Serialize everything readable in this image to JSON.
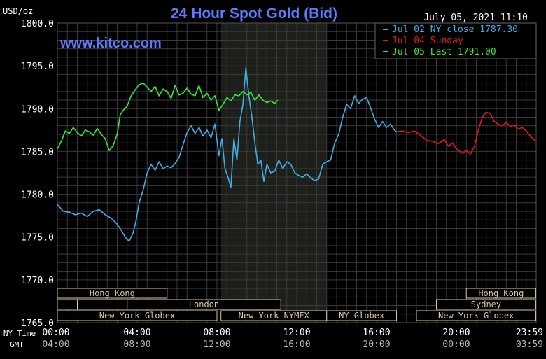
{
  "chart_data": {
    "type": "line",
    "title": "24 Hour Spot Gold (Bid)",
    "ylabel": "USD/oz",
    "brand": "www.kitco.com",
    "timestamp": "July 05, 2021 11:10",
    "ylim": [
      1765.0,
      1800.0
    ],
    "xlim_hours": [
      0,
      24
    ],
    "y_ticks": [
      "1800.0",
      "1795.0",
      "1790.0",
      "1785.0",
      "1780.0",
      "1775.0",
      "1770.0",
      "1765.0"
    ],
    "y_tick_values": [
      1800,
      1795,
      1790,
      1785,
      1780,
      1775,
      1770,
      1765
    ],
    "grid": true,
    "legend_position": "top-right",
    "time_axis": {
      "row1_label": "NY Time",
      "row2_label": "GMT",
      "ticks": [
        {
          "hour": 0,
          "ny": "00:00",
          "gmt": "04:00"
        },
        {
          "hour": 4,
          "ny": "04:00",
          "gmt": "08:00"
        },
        {
          "hour": 8,
          "ny": "08:00",
          "gmt": "12:00"
        },
        {
          "hour": 12,
          "ny": "12:00",
          "gmt": "16:00"
        },
        {
          "hour": 16,
          "ny": "16:00",
          "gmt": "20:00"
        },
        {
          "hour": 20,
          "ny": "20:00",
          "gmt": "00:00"
        },
        {
          "hour": 23.98,
          "ny": "23:59",
          "gmt": "03:59"
        }
      ]
    },
    "nymex_session_hours": [
      8.2,
      13.5
    ],
    "market_sessions": [
      {
        "label": "Hong Kong",
        "start": 0.0,
        "end": 5.5,
        "row": 1,
        "show_label": true
      },
      {
        "label": "",
        "start": 0.0,
        "end": 1.0,
        "row": 2,
        "show_label": false
      },
      {
        "label": "",
        "start": 1.0,
        "end": 3.5,
        "row": 2,
        "show_label": false
      },
      {
        "label": "London",
        "start": 3.5,
        "end": 11.2,
        "row": 2,
        "show_label": true
      },
      {
        "label": "New York Globex",
        "start": 0.0,
        "end": 8.0,
        "row": 3,
        "show_label": true
      },
      {
        "label": "New York NYMEX",
        "start": 8.2,
        "end": 13.5,
        "row": 3,
        "show_label": true
      },
      {
        "label": "NY Globex",
        "start": 13.5,
        "end": 17.0,
        "row": 3,
        "show_label": true
      },
      {
        "label": "Hong Kong",
        "start": 20.5,
        "end": 23.98,
        "row": 1,
        "show_label": true
      },
      {
        "label": "Sydney",
        "start": 19.0,
        "end": 23.98,
        "row": 2,
        "show_label": true
      },
      {
        "label": "New York Globex",
        "start": 18.0,
        "end": 23.98,
        "row": 3,
        "show_label": true
      }
    ],
    "series": [
      {
        "name": "Jul 02 NY close 1787.30",
        "color": "#3fb0e6",
        "x": [
          0.0,
          0.3,
          0.6,
          0.9,
          1.2,
          1.5,
          1.8,
          2.1,
          2.4,
          2.7,
          3.0,
          3.2,
          3.4,
          3.6,
          3.8,
          3.95,
          4.1,
          4.3,
          4.5,
          4.7,
          4.9,
          5.1,
          5.3,
          5.5,
          5.7,
          5.9,
          6.1,
          6.3,
          6.5,
          6.7,
          6.9,
          7.1,
          7.3,
          7.5,
          7.7,
          7.9,
          8.1,
          8.25,
          8.4,
          8.55,
          8.7,
          8.85,
          9.0,
          9.15,
          9.3,
          9.45,
          9.6,
          9.75,
          9.9,
          10.05,
          10.2,
          10.35,
          10.5,
          10.7,
          10.9,
          11.1,
          11.3,
          11.5,
          11.7,
          11.9,
          12.1,
          12.3,
          12.5,
          12.7,
          12.9,
          13.1,
          13.3,
          13.5,
          13.7,
          13.9,
          14.1,
          14.3,
          14.5,
          14.7,
          14.9,
          15.1,
          15.3,
          15.5,
          15.7,
          15.9,
          16.1,
          16.3,
          16.5,
          16.7,
          16.9,
          17.0
        ],
        "values": [
          1778.8,
          1778.0,
          1777.9,
          1777.6,
          1777.8,
          1777.4,
          1778.0,
          1778.2,
          1777.6,
          1777.2,
          1776.5,
          1775.8,
          1775.0,
          1774.5,
          1775.5,
          1777.0,
          1779.0,
          1780.5,
          1782.5,
          1783.5,
          1782.8,
          1783.8,
          1783.0,
          1783.3,
          1783.1,
          1783.6,
          1784.3,
          1785.8,
          1787.2,
          1788.0,
          1787.1,
          1787.8,
          1786.8,
          1787.5,
          1786.6,
          1788.2,
          1784.5,
          1786.5,
          1783.0,
          1782.0,
          1780.8,
          1786.5,
          1784.0,
          1788.5,
          1790.5,
          1794.8,
          1791.5,
          1789.0,
          1786.0,
          1783.5,
          1784.0,
          1781.5,
          1783.5,
          1782.5,
          1782.7,
          1784.0,
          1783.0,
          1783.8,
          1783.5,
          1782.5,
          1782.2,
          1782.0,
          1782.4,
          1781.9,
          1781.6,
          1781.8,
          1783.5,
          1783.8,
          1784.0,
          1786.0,
          1787.0,
          1789.0,
          1790.5,
          1790.0,
          1791.5,
          1790.6,
          1791.1,
          1791.3,
          1790.1,
          1788.8,
          1787.8,
          1788.5,
          1787.8,
          1788.2,
          1787.5,
          1787.3
        ]
      },
      {
        "name": "Jul 04 Sunday",
        "color": "#e01a1a",
        "x": [
          17.0,
          17.3,
          17.6,
          17.9,
          18.2,
          18.5,
          18.8,
          19.1,
          19.4,
          19.6,
          19.8,
          20.0,
          20.3,
          20.5,
          20.7,
          20.9,
          21.1,
          21.3,
          21.5,
          21.7,
          21.9,
          22.1,
          22.3,
          22.5,
          22.7,
          22.9,
          23.1,
          23.3,
          23.5,
          23.7,
          23.98
        ],
        "values": [
          1787.3,
          1787.4,
          1787.2,
          1787.4,
          1786.9,
          1786.3,
          1786.2,
          1785.9,
          1786.4,
          1785.6,
          1786.0,
          1785.3,
          1784.8,
          1785.1,
          1784.7,
          1785.5,
          1787.5,
          1789.0,
          1789.6,
          1789.4,
          1788.5,
          1788.2,
          1788.0,
          1788.4,
          1787.9,
          1788.1,
          1787.6,
          1787.8,
          1787.4,
          1786.8,
          1786.2
        ]
      },
      {
        "name": "Jul 05 Last 1791.00",
        "color": "#3ce63c",
        "x": [
          0.0,
          0.2,
          0.4,
          0.6,
          0.8,
          1.0,
          1.2,
          1.4,
          1.6,
          1.8,
          2.0,
          2.2,
          2.4,
          2.6,
          2.8,
          3.0,
          3.15,
          3.3,
          3.5,
          3.7,
          3.9,
          4.1,
          4.3,
          4.5,
          4.7,
          4.9,
          5.1,
          5.3,
          5.5,
          5.7,
          5.9,
          6.1,
          6.3,
          6.5,
          6.7,
          6.9,
          7.1,
          7.3,
          7.5,
          7.7,
          7.9,
          8.1,
          8.3,
          8.5,
          8.7,
          8.9,
          9.1,
          9.3,
          9.5,
          9.7,
          9.9,
          10.1,
          10.3,
          10.5,
          10.7,
          10.9,
          11.05
        ],
        "values": [
          1785.3,
          1786.2,
          1787.4,
          1787.1,
          1787.8,
          1787.2,
          1786.8,
          1787.5,
          1787.3,
          1786.9,
          1787.7,
          1787.0,
          1786.5,
          1785.1,
          1785.7,
          1787.0,
          1789.3,
          1789.8,
          1790.3,
          1791.5,
          1792.2,
          1792.8,
          1793.0,
          1792.5,
          1792.0,
          1792.6,
          1791.5,
          1792.3,
          1792.0,
          1791.2,
          1792.7,
          1791.6,
          1791.8,
          1792.4,
          1791.7,
          1791.5,
          1792.7,
          1791.3,
          1791.8,
          1791.0,
          1791.5,
          1789.8,
          1790.5,
          1791.3,
          1790.9,
          1791.6,
          1791.5,
          1792.0,
          1791.6,
          1791.9,
          1791.0,
          1791.6,
          1791.0,
          1790.7,
          1790.9,
          1790.6,
          1791.0
        ]
      }
    ]
  },
  "colors": {
    "background": "#000000",
    "grid": "#3a3a3a",
    "title": "#5b7bff",
    "brand": "#5b7bff",
    "text": "#ffffff",
    "session_fill": "#000000",
    "session_stroke": "#d9c89a",
    "nymex_shade": "#1d1f1b"
  }
}
